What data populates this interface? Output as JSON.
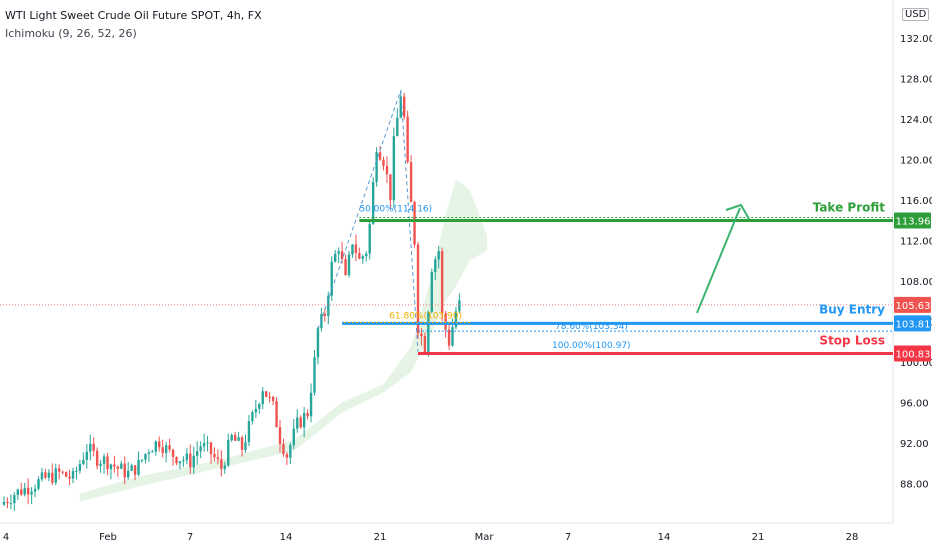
{
  "header": {
    "title": "WTI Light Sweet Crude Oil Future SPOT, 4h, FX",
    "indicator": "Ichimoku (9, 26, 52, 26)",
    "currency": "USD"
  },
  "colors": {
    "up": "#26a69a",
    "down": "#ef5350",
    "take_profit": "#2e9e3a",
    "buy_entry": "#2196f3",
    "stop_loss": "#f23645",
    "fib_golden": "#f0b000",
    "cloud": "#e3f3e3",
    "axis_text": "#131722"
  },
  "chart_data": {
    "type": "candlestick",
    "title": "WTI Light Sweet Crude Oil Future SPOT, 4h, FX",
    "ylim": [
      84,
      132
    ],
    "y_ticks": [
      88,
      92,
      96,
      100,
      104,
      108,
      112,
      116,
      120,
      124,
      128,
      132
    ],
    "x_ticks": [
      "4",
      "Feb",
      "7",
      "14",
      "21",
      "Mar",
      "7",
      "14",
      "21",
      "28"
    ],
    "current_price": 105.63,
    "levels": [
      {
        "label": "Take Profit",
        "value": 113.96
      },
      {
        "label": "Buy Entry",
        "value": 103.81
      },
      {
        "label": "Stop Loss",
        "value": 100.83
      }
    ],
    "fib_labels": [
      {
        "text": "50.00%(114.16)",
        "value": 114.16
      },
      {
        "text": "61.80%(103.90)",
        "value": 103.9
      },
      {
        "text": "78.60%(103.34)",
        "value": 103.34
      },
      {
        "text": "100.00%(100.97)",
        "value": 100.97
      }
    ],
    "price_path": [
      [
        0,
        86.2
      ],
      [
        3,
        87.0
      ],
      [
        8,
        87.8
      ],
      [
        12,
        88.5
      ],
      [
        16,
        89.0
      ],
      [
        20,
        88.5
      ],
      [
        24,
        91.5
      ],
      [
        27,
        90.5
      ],
      [
        30,
        90.2
      ],
      [
        33,
        89.5
      ],
      [
        36,
        89.0
      ],
      [
        39,
        89.8
      ],
      [
        42,
        91.5
      ],
      [
        45,
        92.2
      ],
      [
        48,
        91.0
      ],
      [
        51,
        90.5
      ],
      [
        54,
        90.2
      ],
      [
        57,
        91.8
      ],
      [
        60,
        91.0
      ],
      [
        63,
        89.5
      ],
      [
        66,
        92.5
      ],
      [
        69,
        91.5
      ],
      [
        72,
        94.5
      ],
      [
        75,
        97.5
      ],
      [
        78,
        95.5
      ],
      [
        80,
        92.5
      ],
      [
        82,
        90.8
      ],
      [
        85,
        93.8
      ],
      [
        88,
        95.0
      ],
      [
        90,
        100.0
      ],
      [
        91,
        103.2
      ],
      [
        93,
        104.8
      ],
      [
        95,
        109.5
      ],
      [
        97,
        111.5
      ],
      [
        99,
        108.0
      ],
      [
        101,
        112.0
      ],
      [
        103,
        110.0
      ],
      [
        105,
        111.0
      ],
      [
        106,
        113.5
      ],
      [
        108,
        121.5
      ],
      [
        110,
        120.0
      ],
      [
        112,
        116.5
      ],
      [
        113,
        121.5
      ],
      [
        115,
        126.5
      ],
      [
        116,
        124.0
      ],
      [
        117,
        119.0
      ],
      [
        119,
        112.0
      ],
      [
        120,
        103.5
      ],
      [
        122,
        101.5
      ],
      [
        124,
        109.5
      ],
      [
        126,
        111.0
      ],
      [
        127,
        104.5
      ],
      [
        129,
        102.0
      ],
      [
        131,
        105.0
      ],
      [
        132,
        105.63
      ]
    ],
    "cloud": [
      [
        22,
        87.0,
        86.2
      ],
      [
        38,
        88.6,
        87.6
      ],
      [
        62,
        90.3,
        89.5
      ],
      [
        84,
        92.3,
        91.2
      ],
      [
        98,
        96.0,
        95.0
      ],
      [
        110,
        97.8,
        97.0
      ],
      [
        118,
        101.5,
        99.0
      ],
      [
        124,
        108.5,
        103.0
      ],
      [
        128,
        114.5,
        106.0
      ],
      [
        131,
        118.0,
        107.5
      ],
      [
        135,
        117.0,
        110.0
      ],
      [
        140,
        112.5,
        111.0
      ]
    ]
  },
  "annotations": {
    "take_profit_label": "Take Profit",
    "buy_entry_label": "Buy Entry",
    "stop_loss_label": "Stop Loss",
    "tp_badge": "113.96",
    "entry_badge": "103.81",
    "sl_badge": "100.83",
    "price_badge": "105.63"
  }
}
